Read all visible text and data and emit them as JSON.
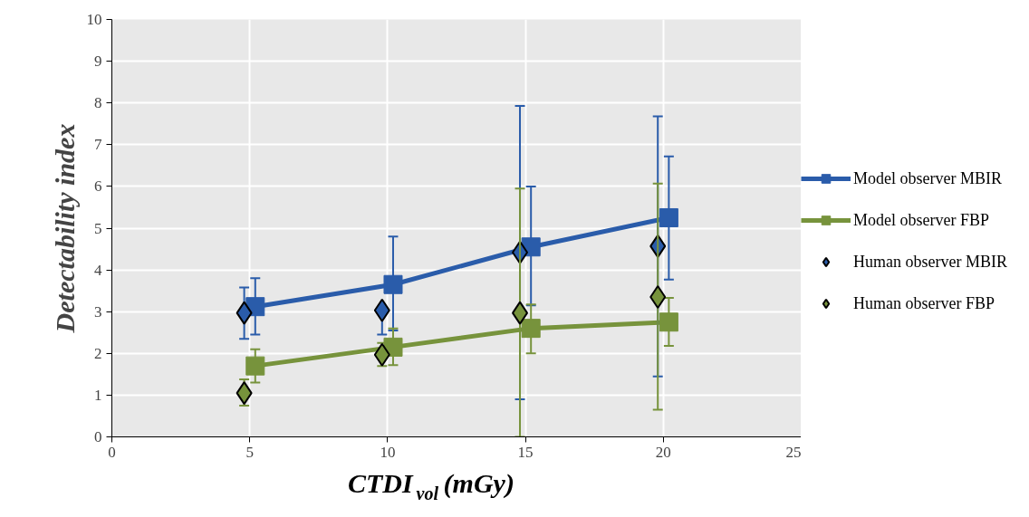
{
  "chart_data": {
    "type": "line",
    "xlabel": "CTDI$_{vol}$(mGy)",
    "ylabel": "Detectability index",
    "xlim": [
      0,
      25
    ],
    "xticks": [
      0,
      5,
      10,
      15,
      20,
      25
    ],
    "ylim": [
      0,
      10
    ],
    "yticks": [
      0,
      1,
      2,
      3,
      4,
      5,
      6,
      7,
      8,
      9,
      10
    ],
    "grid": true,
    "legend": "right",
    "series": [
      {
        "name": "Model observer MBIR",
        "marker": "square",
        "color": "#2a5caa",
        "x": [
          5.2,
          10.2,
          15.2,
          20.2
        ],
        "values": [
          3.12,
          3.65,
          4.55,
          5.25
        ],
        "errors": [
          [
            2.45,
            3.8
          ],
          [
            2.55,
            4.8
          ],
          [
            3.15,
            6.0
          ],
          [
            3.77,
            6.72
          ]
        ]
      },
      {
        "name": "Model observer FBP",
        "marker": "square",
        "color": "#77933c",
        "x": [
          5.2,
          10.2,
          15.2,
          20.2
        ],
        "values": [
          1.7,
          2.15,
          2.6,
          2.75
        ],
        "errors": [
          [
            1.3,
            2.1
          ],
          [
            1.72,
            2.6
          ],
          [
            2.0,
            3.17
          ],
          [
            2.18,
            3.33
          ]
        ]
      },
      {
        "name": "Human observer MBIR",
        "type": "scatter",
        "marker": "diamond",
        "color": "#2a5caa",
        "x": [
          4.8,
          9.8,
          14.8,
          19.8
        ],
        "values": [
          2.97,
          3.03,
          4.42,
          4.57
        ],
        "errors": [
          [
            2.35,
            3.58
          ],
          [
            2.45,
            3.03
          ],
          [
            0.9,
            7.93
          ],
          [
            1.45,
            7.68
          ]
        ]
      },
      {
        "name": "Human observer FBP",
        "type": "scatter",
        "marker": "diamond",
        "color": "#77933c",
        "x": [
          4.8,
          9.8,
          14.8,
          19.8
        ],
        "values": [
          1.05,
          1.97,
          2.97,
          3.35
        ],
        "errors": [
          [
            0.75,
            1.38
          ],
          [
            1.7,
            2.25
          ],
          [
            0.0,
            5.95
          ],
          [
            0.65,
            6.07
          ]
        ]
      }
    ]
  }
}
